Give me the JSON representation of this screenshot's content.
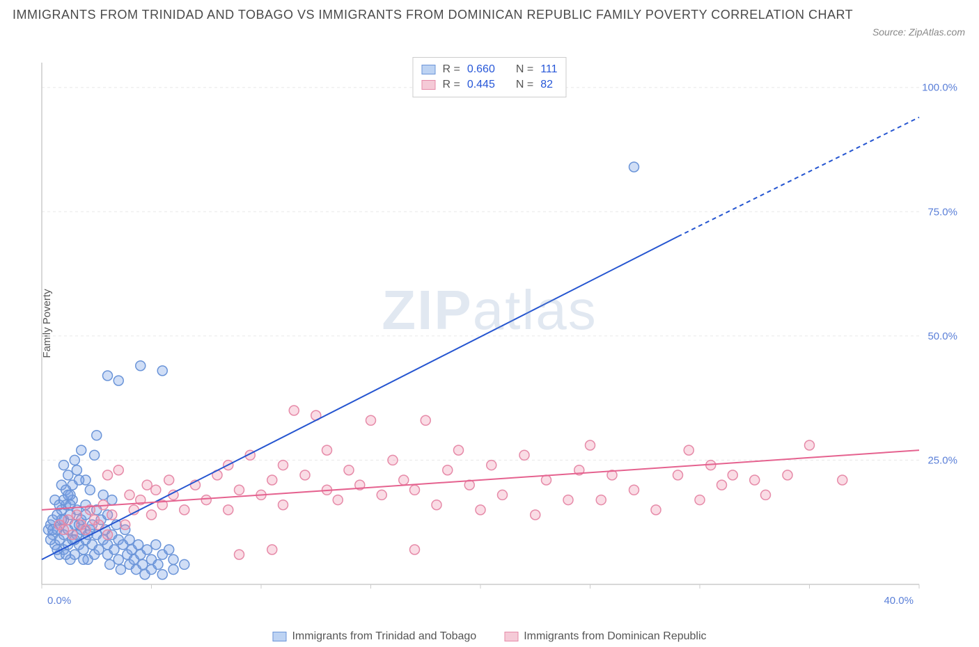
{
  "title": "IMMIGRANTS FROM TRINIDAD AND TOBAGO VS IMMIGRANTS FROM DOMINICAN REPUBLIC FAMILY POVERTY CORRELATION CHART",
  "source": "Source: ZipAtlas.com",
  "watermark_bold": "ZIP",
  "watermark_light": "atlas",
  "y_axis_label": "Family Poverty",
  "chart": {
    "type": "scatter",
    "background_color": "#ffffff",
    "grid_color": "#e8e8e8",
    "axis_color": "#cccccc",
    "tick_label_color": "#5a7fd8",
    "tick_font_size": 15,
    "xlim": [
      0,
      40
    ],
    "ylim": [
      0,
      105
    ],
    "x_ticks": [
      0,
      5,
      10,
      15,
      20,
      25,
      30,
      35,
      40
    ],
    "x_tick_labels": [
      "0.0%",
      "",
      "",
      "",
      "",
      "",
      "",
      "",
      "40.0%"
    ],
    "y_ticks": [
      25,
      50,
      75,
      100
    ],
    "y_tick_labels": [
      "25.0%",
      "50.0%",
      "75.0%",
      "100.0%"
    ],
    "marker_radius": 7,
    "marker_stroke_width": 1.5,
    "reg_line_width": 2,
    "series": [
      {
        "id": "tt",
        "label": "Immigrants from Trinidad and Tobago",
        "fill_color": "rgba(120,160,230,0.35)",
        "stroke_color": "#6a94d8",
        "swatch_fill": "#bdd3f3",
        "swatch_border": "#6a94d8",
        "r_value": "0.660",
        "n_value": "111",
        "regression": {
          "x1": 0,
          "y1": 5,
          "x2": 29,
          "y2": 70,
          "x2_dash": 40,
          "y2_dash": 94,
          "color": "#2555d0"
        },
        "points": [
          [
            0.3,
            11
          ],
          [
            0.4,
            12
          ],
          [
            0.5,
            10
          ],
          [
            0.5,
            13
          ],
          [
            0.6,
            8
          ],
          [
            0.7,
            11
          ],
          [
            0.7,
            14
          ],
          [
            0.8,
            6
          ],
          [
            0.8,
            9
          ],
          [
            0.8,
            12
          ],
          [
            0.9,
            15
          ],
          [
            1.0,
            7
          ],
          [
            1.0,
            10
          ],
          [
            1.0,
            13
          ],
          [
            1.1,
            16
          ],
          [
            1.2,
            8
          ],
          [
            1.2,
            11
          ],
          [
            1.3,
            5
          ],
          [
            1.3,
            14
          ],
          [
            1.4,
            9
          ],
          [
            1.4,
            17
          ],
          [
            1.5,
            12
          ],
          [
            1.5,
            6
          ],
          [
            1.6,
            10
          ],
          [
            1.6,
            15
          ],
          [
            1.7,
            8
          ],
          [
            1.8,
            11
          ],
          [
            1.8,
            13
          ],
          [
            1.9,
            7
          ],
          [
            2.0,
            9
          ],
          [
            2.0,
            14
          ],
          [
            2.0,
            16
          ],
          [
            2.1,
            5
          ],
          [
            2.2,
            11
          ],
          [
            2.3,
            8
          ],
          [
            2.3,
            12
          ],
          [
            2.4,
            6
          ],
          [
            2.5,
            10
          ],
          [
            2.5,
            15
          ],
          [
            2.6,
            7
          ],
          [
            2.7,
            13
          ],
          [
            2.8,
            9
          ],
          [
            2.9,
            11
          ],
          [
            3.0,
            6
          ],
          [
            3.0,
            8
          ],
          [
            3.0,
            14
          ],
          [
            3.1,
            4
          ],
          [
            3.2,
            10
          ],
          [
            3.3,
            7
          ],
          [
            3.4,
            12
          ],
          [
            3.5,
            5
          ],
          [
            3.5,
            9
          ],
          [
            3.6,
            3
          ],
          [
            3.7,
            8
          ],
          [
            3.8,
            11
          ],
          [
            3.9,
            6
          ],
          [
            4.0,
            4
          ],
          [
            4.0,
            9
          ],
          [
            4.1,
            7
          ],
          [
            4.2,
            5
          ],
          [
            4.3,
            3
          ],
          [
            4.4,
            8
          ],
          [
            4.5,
            6
          ],
          [
            4.6,
            4
          ],
          [
            4.7,
            2
          ],
          [
            4.8,
            7
          ],
          [
            5.0,
            5
          ],
          [
            5.0,
            3
          ],
          [
            5.2,
            8
          ],
          [
            5.3,
            4
          ],
          [
            5.5,
            6
          ],
          [
            5.5,
            2
          ],
          [
            5.8,
            7
          ],
          [
            6.0,
            3
          ],
          [
            6.0,
            5
          ],
          [
            6.5,
            4
          ],
          [
            1.0,
            24
          ],
          [
            1.2,
            22
          ],
          [
            1.4,
            20
          ],
          [
            1.6,
            23
          ],
          [
            1.8,
            27
          ],
          [
            2.0,
            21
          ],
          [
            2.2,
            19
          ],
          [
            2.4,
            26
          ],
          [
            2.5,
            30
          ],
          [
            1.5,
            25
          ],
          [
            0.9,
            20
          ],
          [
            1.1,
            19
          ],
          [
            1.3,
            18
          ],
          [
            1.7,
            21
          ],
          [
            0.6,
            17
          ],
          [
            0.8,
            16
          ],
          [
            1.0,
            17
          ],
          [
            1.2,
            18
          ],
          [
            2.8,
            18
          ],
          [
            3.2,
            17
          ],
          [
            3.0,
            42
          ],
          [
            3.5,
            41
          ],
          [
            4.5,
            44
          ],
          [
            5.5,
            43
          ],
          [
            0.4,
            9
          ],
          [
            0.5,
            11
          ],
          [
            0.7,
            7
          ],
          [
            0.9,
            13
          ],
          [
            1.1,
            6
          ],
          [
            1.3,
            16
          ],
          [
            1.5,
            9
          ],
          [
            1.7,
            12
          ],
          [
            1.9,
            5
          ],
          [
            2.1,
            10
          ],
          [
            27.0,
            84
          ]
        ]
      },
      {
        "id": "dr",
        "label": "Immigrants from Dominican Republic",
        "fill_color": "rgba(240,140,170,0.30)",
        "stroke_color": "#e68aa8",
        "swatch_fill": "#f5cad7",
        "swatch_border": "#e68aa8",
        "r_value": "0.445",
        "n_value": "82",
        "regression": {
          "x1": 0,
          "y1": 15,
          "x2": 40,
          "y2": 27,
          "x2_dash": 40,
          "y2_dash": 27,
          "color": "#e5628f"
        },
        "points": [
          [
            0.8,
            12
          ],
          [
            1.0,
            11
          ],
          [
            1.2,
            13
          ],
          [
            1.4,
            10
          ],
          [
            1.6,
            14
          ],
          [
            1.8,
            12
          ],
          [
            2.0,
            11
          ],
          [
            2.2,
            15
          ],
          [
            2.4,
            13
          ],
          [
            2.6,
            12
          ],
          [
            2.8,
            16
          ],
          [
            3.0,
            10
          ],
          [
            3.0,
            22
          ],
          [
            3.2,
            14
          ],
          [
            3.5,
            23
          ],
          [
            3.8,
            12
          ],
          [
            4.0,
            18
          ],
          [
            4.2,
            15
          ],
          [
            4.5,
            17
          ],
          [
            4.8,
            20
          ],
          [
            5.0,
            14
          ],
          [
            5.2,
            19
          ],
          [
            5.5,
            16
          ],
          [
            5.8,
            21
          ],
          [
            6.0,
            18
          ],
          [
            6.5,
            15
          ],
          [
            7.0,
            20
          ],
          [
            7.5,
            17
          ],
          [
            8.0,
            22
          ],
          [
            8.5,
            24
          ],
          [
            8.5,
            15
          ],
          [
            9.0,
            19
          ],
          [
            9.0,
            6
          ],
          [
            9.5,
            26
          ],
          [
            10.0,
            18
          ],
          [
            10.5,
            21
          ],
          [
            10.5,
            7
          ],
          [
            11.0,
            16
          ],
          [
            11.0,
            24
          ],
          [
            11.5,
            35
          ],
          [
            12.0,
            22
          ],
          [
            12.5,
            34
          ],
          [
            13.0,
            19
          ],
          [
            13.0,
            27
          ],
          [
            13.5,
            17
          ],
          [
            14.0,
            23
          ],
          [
            14.5,
            20
          ],
          [
            15.0,
            33
          ],
          [
            15.5,
            18
          ],
          [
            16.0,
            25
          ],
          [
            16.5,
            21
          ],
          [
            17.0,
            7
          ],
          [
            17.0,
            19
          ],
          [
            17.5,
            33
          ],
          [
            18.0,
            16
          ],
          [
            18.5,
            23
          ],
          [
            19.0,
            27
          ],
          [
            19.5,
            20
          ],
          [
            20.0,
            15
          ],
          [
            20.5,
            24
          ],
          [
            21.0,
            18
          ],
          [
            22.0,
            26
          ],
          [
            22.5,
            14
          ],
          [
            23.0,
            21
          ],
          [
            24.0,
            17
          ],
          [
            24.5,
            23
          ],
          [
            25.0,
            28
          ],
          [
            25.5,
            17
          ],
          [
            26.0,
            22
          ],
          [
            27.0,
            19
          ],
          [
            28.0,
            15
          ],
          [
            29.0,
            22
          ],
          [
            29.5,
            27
          ],
          [
            30.0,
            17
          ],
          [
            30.5,
            24
          ],
          [
            31.0,
            20
          ],
          [
            31.5,
            22
          ],
          [
            32.5,
            21
          ],
          [
            33.0,
            18
          ],
          [
            34.0,
            22
          ],
          [
            35.0,
            28
          ],
          [
            36.5,
            21
          ]
        ]
      }
    ]
  },
  "legend_top": {
    "r_label": "R =",
    "n_label": "N ="
  }
}
